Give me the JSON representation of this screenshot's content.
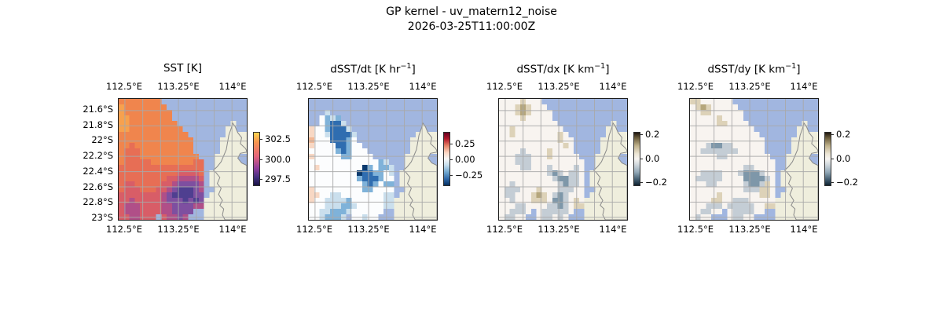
{
  "figure": {
    "title_line1": "GP kernel - uv_matern12_noise",
    "title_line2": "2026-03-25T11:00:00Z"
  },
  "colors": {
    "ocean": "#a1b6e0",
    "land": "#efeedd",
    "coast": "#8a8a8a",
    "grid": "#a8a8a8",
    "axes_border": "#1c1c1c",
    "text": "#000000"
  },
  "map_grid": {
    "x_grid_pcts": [
      4.85,
      18.79,
      32.73,
      46.67,
      60.61,
      74.55,
      88.48
    ],
    "y_grid_pcts": [
      9.62,
      22.24,
      34.87,
      47.5,
      60.13,
      72.76,
      85.38,
      98.01
    ],
    "x_tick_labels": [
      {
        "pct": 4.85,
        "label": "112.5°E"
      },
      {
        "pct": 46.67,
        "label": "113.25°E"
      },
      {
        "pct": 88.48,
        "label": "114°E"
      }
    ],
    "y_tick_labels": [
      {
        "pct": 9.62,
        "label": "21.6°S"
      },
      {
        "pct": 22.24,
        "label": "21.8°S"
      },
      {
        "pct": 34.87,
        "label": "22°S"
      },
      {
        "pct": 47.5,
        "label": "22.2°S"
      },
      {
        "pct": 60.13,
        "label": "22.4°S"
      },
      {
        "pct": 72.76,
        "label": "22.6°S"
      },
      {
        "pct": 85.38,
        "label": "22.8°S"
      },
      {
        "pct": 98.01,
        "label": "23°S"
      }
    ]
  },
  "land_polygon": [
    [
      89,
      20
    ],
    [
      91,
      23
    ],
    [
      93,
      28
    ],
    [
      96,
      32
    ],
    [
      95,
      37
    ],
    [
      99,
      41
    ],
    [
      100,
      43
    ],
    [
      100,
      44
    ],
    [
      95,
      45
    ],
    [
      93,
      49
    ],
    [
      96,
      53
    ],
    [
      100,
      55
    ],
    [
      100,
      100
    ],
    [
      83,
      100
    ],
    [
      81,
      96
    ],
    [
      82,
      91
    ],
    [
      79,
      88
    ],
    [
      81,
      84
    ],
    [
      78,
      79
    ],
    [
      80,
      74
    ],
    [
      77,
      70
    ],
    [
      79,
      65
    ],
    [
      76,
      61
    ],
    [
      74,
      59
    ],
    [
      77,
      56
    ],
    [
      80,
      52
    ],
    [
      82,
      47
    ],
    [
      84,
      42
    ],
    [
      85,
      36
    ],
    [
      86,
      30
    ],
    [
      88,
      24
    ]
  ],
  "chart_data": [
    {
      "id": "sst",
      "type": "heatmap",
      "title": {
        "pre": "SST [K",
        "sup": "",
        "post": "]"
      },
      "x_tick_labels": [
        "112.5°E",
        "113.25°E",
        "114°E"
      ],
      "y_tick_labels": [
        "21.6°S",
        "21.8°S",
        "22°S",
        "22.2°S",
        "22.4°S",
        "22.6°S",
        "22.8°S",
        "23°S"
      ],
      "colorbar": {
        "tick_values": [
          302.5,
          300.0,
          297.5
        ],
        "ticks": [
          {
            "label": "302.5",
            "pct": 13
          },
          {
            "label": "300.0",
            "pct": 52
          },
          {
            "label": "297.5",
            "pct": 90
          }
        ],
        "gradient": [
          [
            0,
            "#fdd44f"
          ],
          [
            18,
            "#f9964f"
          ],
          [
            45,
            "#e4657c"
          ],
          [
            68,
            "#8f3d9c"
          ],
          [
            85,
            "#43307f"
          ],
          [
            100,
            "#191245"
          ]
        ]
      },
      "palette": {
        "1": "#f7a14e",
        "2": "#f0854d",
        "3": "#e76e55",
        "4": "#d85d67",
        "5": "#b04f88",
        "6": "#7e4fa0",
        "7": "#4f3f90"
      },
      "rows": [
        "22222222................",
        "122222222...............",
        "1222222222..............",
        "1122222222..............",
        "11222222222..........L..",
        "112222222222........LL..",
        "2222222222222.......LLLL",
        "22222222222222.....LLLLL",
        "22322222222222.....LLLLL",
        "23332222222222.....LLLLL",
        "233322222222222...LLLL..",
        "2333332222222233..LLLL..",
        "3333333333333333..LLLLL.",
        "3333333333344443.LLLLLL.",
        "3333333334455554.LLLLLLL",
        "3443333344566665.LLLLLLL",
        "3444333445677765..LLLLLL",
        "4444444456777766.LLLLLLL",
        "4454444456667676LLLLLLLL",
        "4555444455666655LLLLLLLL",
        "45554444556666..LLLLLLLL",
        "4455444.45565...LLLLLLLL"
      ]
    },
    {
      "id": "dsst_dt",
      "type": "heatmap",
      "title": {
        "pre": "dSST/dt [K hr",
        "sup": "−1",
        "post": "]"
      },
      "x_tick_labels": [
        "112.5°E",
        "113.25°E",
        "114°E"
      ],
      "colorbar": {
        "tick_values": [
          0.25,
          0.0,
          -0.25
        ],
        "ticks": [
          {
            "label": "0.25",
            "pct": 22
          },
          {
            "label": "0.00",
            "pct": 52
          },
          {
            "label": "−0.25",
            "pct": 82
          }
        ],
        "gradient": [
          [
            0,
            "#67001f"
          ],
          [
            12,
            "#b2182b"
          ],
          [
            25,
            "#e58368"
          ],
          [
            38,
            "#fbd7c3"
          ],
          [
            50,
            "#f7f7f7"
          ],
          [
            62,
            "#c3dcec"
          ],
          [
            75,
            "#71a8cf"
          ],
          [
            88,
            "#2e67a8"
          ],
          [
            100,
            "#053061"
          ]
        ]
      },
      "palette": {
        "w": "#fcfdfe",
        "p": "#f8d8c4",
        "P": "#f2b794",
        "l": "#cadfed",
        "b": "#7fb2d9",
        "B": "#2f6db0",
        "D": "#0a3a6e"
      },
      "rows": [
        "........................",
        "........................",
        "...l....................",
        "..wblb..................",
        "..wbBBl.................",
        "pwwbBBBl................",
        "pwwlBBBBl...........LLLL",
        "PwwwBBBbw..........LLLLL",
        "pwwwwBBbww.........LLLLL",
        "wwwwwbBbwww........LLLLL",
        "pwwwwwbbwwww......LLLL..",
        "wwwwwwwwwwwwwbl...LLLL..",
        "wpwwwwwwwwDbwbbl..LLLLL.",
        "wwwwwwwwwDBBbbwl.LLLLLL.",
        "wwwwwwwwwbBBBbww.LLLLLLL",
        "wwwwwwwwwwbBbwbb.LLLLLLL",
        "pwwwwwwwwwbbwwww..LLLLLL",
        "ppwwllwwwwwwwwll.LLLLLLL",
        "pwwllllbwwwwwwllLLLLLLLL",
        "wwwlllbblwwwwwllLLLLLLLL",
        "wwllbbblwwwwww..LLLLLLLL",
        "wwlbbbl.wwlww...LLLLLLLL"
      ]
    },
    {
      "id": "dsst_dx",
      "type": "heatmap",
      "title": {
        "pre": "dSST/dx [K km",
        "sup": "−1",
        "post": "]"
      },
      "x_tick_labels": [
        "112.5°E",
        "113.25°E",
        "114°E"
      ],
      "colorbar": {
        "tick_values": [
          0.2,
          0.0,
          -0.2
        ],
        "ticks": [
          {
            "label": "0.2",
            "pct": 5
          },
          {
            "label": "0.0",
            "pct": 50
          },
          {
            "label": "−0.2",
            "pct": 96
          }
        ],
        "gradient": [
          [
            0,
            "#1f1710"
          ],
          [
            10,
            "#6b5c3b"
          ],
          [
            25,
            "#c0b28c"
          ],
          [
            40,
            "#ece5d4"
          ],
          [
            50,
            "#f7f5f1"
          ],
          [
            60,
            "#d3dade"
          ],
          [
            75,
            "#93a9b8"
          ],
          [
            90,
            "#3d586b"
          ],
          [
            100,
            "#0e2230"
          ]
        ]
      },
      "palette": {
        "w": "#f8f4f0",
        "t": "#ddd2b8",
        "T": "#b5a67c",
        "g": "#c4cdd5",
        "G": "#7e97a9"
      },
      "rows": [
        "wwwwtwww................",
        "wwwtTtwww...............",
        "wwwtTtwwww..............",
        "wwwwtwwwww..............",
        "wwwwwwwwwww..........L..",
        "wwtwwwwwwwww........LL..",
        "wwtwwwwwwwwtw.......LLLL",
        "wwwwwwwwwwwtww.....LLLLL",
        "wwwwwwwwwwwwtw.....LLLLL",
        "wwwwgwwwwtwwww.....LLLLL",
        "wwwgggwwwtwwwww...LLLL..",
        "wwwgggwwwwwwwwww..LLLL..",
        "wwwwggwwwgwwwwgw..LLLLL.",
        "wwwwwwwwwgGgwggw.LLLLLL.",
        "wwwwwwwwwwgGGggw.LLLLLLL",
        "wwgwwwwwwwwgGggw.LLLLLLL",
        "wgggwwwtwwwgggww..LLLLLL",
        "wggwwwtTtwgGgwww.LLLLLLL",
        "wwgwwwtttwGGgwtwLLLLLLLL",
        "wwwggwwwwggGgwttLLLLLLLL",
        "wwgggw.wgggggw..LLLLLLLL",
        "wggww..wggwgw...LLLLLLLL"
      ]
    },
    {
      "id": "dsst_dy",
      "type": "heatmap",
      "title": {
        "pre": "dSST/dy [K km",
        "sup": "−1",
        "post": "]"
      },
      "x_tick_labels": [
        "112.5°E",
        "113.25°E",
        "114°E"
      ],
      "colorbar": {
        "tick_values": [
          0.2,
          0.0,
          -0.2
        ],
        "ticks": [
          {
            "label": "0.2",
            "pct": 5
          },
          {
            "label": "0.0",
            "pct": 50
          },
          {
            "label": "−0.2",
            "pct": 96
          }
        ],
        "gradient": [
          [
            0,
            "#1f1710"
          ],
          [
            10,
            "#6b5c3b"
          ],
          [
            25,
            "#c0b28c"
          ],
          [
            40,
            "#ece5d4"
          ],
          [
            50,
            "#f7f5f1"
          ],
          [
            60,
            "#d3dade"
          ],
          [
            75,
            "#93a9b8"
          ],
          [
            90,
            "#3d586b"
          ],
          [
            100,
            "#0e2230"
          ]
        ]
      },
      "palette": {
        "w": "#f8f4f0",
        "t": "#ddd2b8",
        "T": "#b5a67c",
        "g": "#c4cdd5",
        "G": "#7e97a9"
      },
      "rows": [
        "ttwwwwww................",
        "wtTtwwwww...............",
        "wwttwwwwww..............",
        "wwwwwtwwww..............",
        "wwwwwttwwww..........L..",
        "wwwwwwwwwwww........LL..",
        "wwwwwwwwwwwww.......LLLL",
        "wwwwwwwwwwwwww.....LLLLL",
        "wwwgGGggwwwwww.....LLLLL",
        "wwgggggggwwwww.....LLLLL",
        "wwwwwggwwwwwwww...LLLL..",
        "wwwwwwwwwwwwwwww..LLLL..",
        "wwwwwwwwwwggwwww..LLLLL.",
        "wwggggwwwgGGGgww.LLLLLL.",
        "wgggggwwwwGGGGgw.LLLLLLL",
        "wwwggwwwwwgGGgtw.LLLLLLL",
        "wwwwwwwwwwgggttw..LLLLLL",
        "wwwwwtwwwwwwwttw.LLLLLLL",
        "wwwwttwwgggwwwwwLLLLLLLL",
        "wwwgggwgggggwwttLLLLLLLL",
        "wwggww.wggggww..LLLLLLLL",
        "wgww...wggww....LLLLLLLL"
      ]
    }
  ]
}
